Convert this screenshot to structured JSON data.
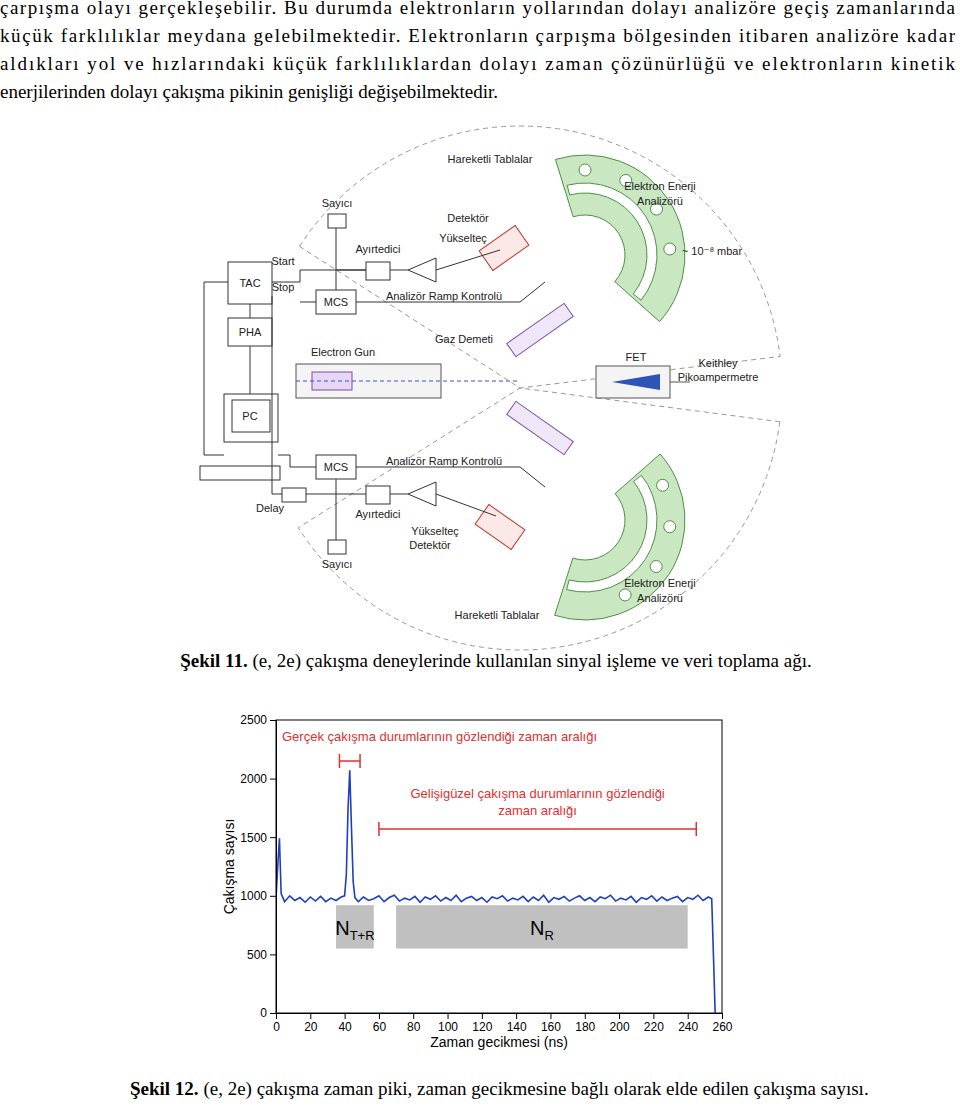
{
  "paragraph": {
    "lines": [
      "çarpışma olayı gerçekleşebilir. Bu durumda elektronların yollarından dolayı analizöre geçiş zamanlarında",
      "küçük farklılıklar meydana gelebilmektedir. Elektronların çarpışma bölgesinden itibaren analizöre kadar",
      "aldıkları yol ve hızlarındaki küçük farklılıklardan dolayı zaman çözünürlüğü ve elektronların kinetik",
      "enerjilerinden dolayı çakışma pikinin genişliği değişebilmektedir."
    ]
  },
  "figure11": {
    "labels": [
      "Hareketli Tablalar",
      "Sayıcı",
      "Detektör",
      "Yükselteç",
      "Elektron Enerji",
      "Analizörü",
      "~ 10⁻⁸ mbar",
      "Start",
      "Ayırtedici",
      "TAC",
      "Stop",
      "MCS",
      "Analizör Ramp Kontrolü",
      "PHA",
      "Electron Gun",
      "Gaz Demeti",
      "FET",
      "Keithley",
      "Pikoampermetre",
      "PC",
      "MCS",
      "Analizör Ramp Kontrolü",
      "Delay",
      "Ayırtedici",
      "Yükselteç",
      "Detektör",
      "Sayıcı",
      "Elektron Enerji",
      "Analizörü",
      "Hareketli Tablalar"
    ],
    "label": "Şekil 11.",
    "caption": " (e, 2e) çakışma deneylerinde kullanılan sinyal işleme ve veri toplama ağı."
  },
  "chart_data": {
    "type": "line",
    "xlabel": "Zaman gecikmesi (ns)",
    "ylabel": "Çakışma sayısı",
    "x": [
      0,
      1,
      2,
      3,
      5,
      8,
      11,
      14,
      17,
      20,
      23,
      26,
      29,
      32,
      35,
      38,
      40,
      41,
      42,
      43,
      44,
      45,
      46,
      48,
      51,
      54,
      57,
      60,
      63,
      66,
      69,
      72,
      75,
      78,
      81,
      84,
      87,
      90,
      93,
      96,
      99,
      102,
      105,
      108,
      111,
      114,
      117,
      120,
      123,
      126,
      129,
      132,
      135,
      138,
      141,
      144,
      147,
      150,
      153,
      156,
      159,
      162,
      165,
      168,
      171,
      174,
      177,
      180,
      183,
      186,
      189,
      192,
      195,
      198,
      201,
      204,
      207,
      210,
      213,
      216,
      219,
      222,
      225,
      228,
      231,
      234,
      237,
      240,
      243,
      246,
      249,
      252,
      254,
      255,
      256
    ],
    "series": [
      {
        "name": "Çakışma sayısı",
        "color": "#1f3fbf",
        "values": [
          980,
          1250,
          1490,
          1020,
          950,
          1000,
          960,
          985,
          945,
          990,
          955,
          995,
          950,
          980,
          960,
          990,
          1000,
          1180,
          1750,
          2070,
          1580,
          1120,
          985,
          950,
          990,
          960,
          975,
          1000,
          950,
          985,
          1005,
          955,
          980,
          965,
          995,
          945,
          990,
          970,
          1000,
          955,
          985,
          960,
          1005,
          950,
          980,
          995,
          960,
          985,
          945,
          990,
          975,
          1000,
          955,
          980,
          965,
          995,
          950,
          990,
          960,
          1005,
          945,
          985,
          970,
          995,
          955,
          980,
          1000,
          960,
          985,
          950,
          990,
          975,
          1005,
          955,
          980,
          965,
          995,
          945,
          985,
          970,
          1000,
          955,
          990,
          960,
          980,
          995,
          950,
          985,
          970,
          1005,
          960,
          990,
          975,
          500,
          0
        ]
      }
    ],
    "xlim": [
      0,
      260
    ],
    "ylim": [
      0,
      2500
    ],
    "xticks": [
      0,
      20,
      40,
      60,
      80,
      100,
      120,
      140,
      160,
      180,
      200,
      220,
      240,
      260
    ],
    "yticks": [
      0,
      500,
      1000,
      1500,
      2000,
      2500
    ],
    "regions": [
      {
        "label": "N",
        "subscript": "T+R",
        "x": [
          35,
          57
        ],
        "y": [
          550,
          920
        ],
        "color": "#c0c0c0"
      },
      {
        "label": "N",
        "subscript": "R",
        "x": [
          70,
          240
        ],
        "y": [
          550,
          920
        ],
        "color": "#c0c0c0"
      }
    ],
    "annotations": [
      {
        "text": [
          "Gerçek çakışma durumlarının gözlendiği zaman aralığı"
        ],
        "x": [
          37,
          49
        ],
        "y": 2150,
        "color": "#e03030"
      },
      {
        "text": [
          "Gelişigüzel çakışma durumlarının gözlendiği",
          "zaman aralığı"
        ],
        "x": [
          60,
          245
        ],
        "y": 1570,
        "color": "#e03030"
      }
    ]
  },
  "figure12": {
    "label": "Şekil 12.",
    "caption": " (e, 2e) çakışma zaman piki, zaman gecikmesine bağlı olarak elde edilen çakışma sayısı."
  }
}
